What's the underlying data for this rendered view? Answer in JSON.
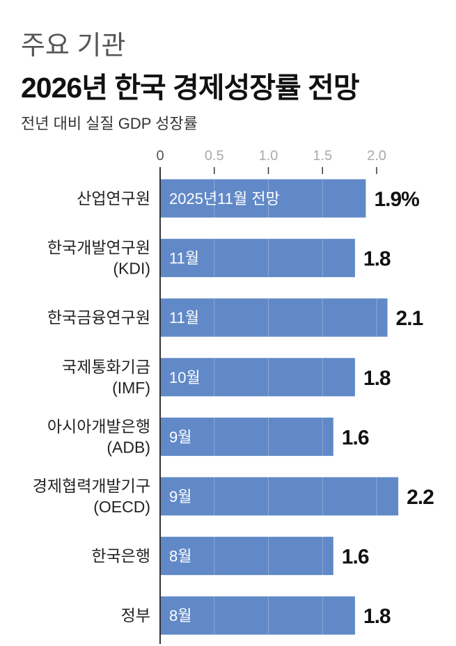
{
  "header": {
    "kicker": "주요 기관",
    "title": "2026년 한국 경제성장률 전망",
    "subtitle": "전년 대비 실질 GDP 성장률"
  },
  "colors": {
    "bar": "#6189c7",
    "gridline": "#8fa9d6",
    "axis": "#333333",
    "tick_label": "#aaaaaa"
  },
  "chart_data": {
    "type": "bar",
    "orientation": "horizontal",
    "xlim": [
      0,
      2.2
    ],
    "ticks": [
      "0",
      "0.5",
      "1.0",
      "1.5",
      "2.0"
    ],
    "tick_values": [
      0,
      0.5,
      1.0,
      1.5,
      2.0
    ],
    "grid": true,
    "categories": [
      [
        "산업연구원"
      ],
      [
        "한국개발연구원",
        "(KDI)"
      ],
      [
        "한국금융연구원"
      ],
      [
        "국제통화기금",
        "(IMF)"
      ],
      [
        "아시아개발은행",
        "(ADB)"
      ],
      [
        "경제협력개발기구",
        "(OECD)"
      ],
      [
        "한국은행"
      ],
      [
        "정부"
      ]
    ],
    "values": [
      1.9,
      1.8,
      2.1,
      1.8,
      1.6,
      2.2,
      1.6,
      1.8
    ],
    "value_labels": [
      "1.9%",
      "1.8",
      "2.1",
      "1.8",
      "1.6",
      "2.2",
      "1.6",
      "1.8"
    ],
    "bar_labels": [
      "2025년11월 전망",
      "11월",
      "11월",
      "10월",
      "9월",
      "9월",
      "8월",
      "8월"
    ]
  }
}
